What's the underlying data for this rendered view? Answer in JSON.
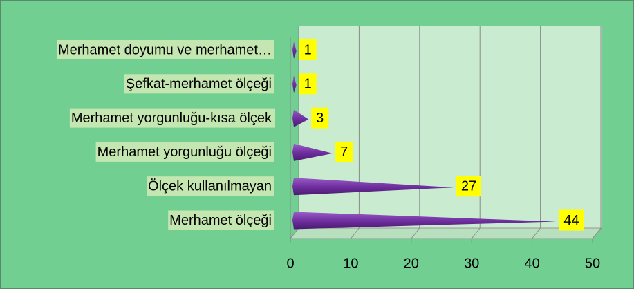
{
  "chart_data": {
    "type": "bar",
    "orientation": "horizontal",
    "categories": [
      "Merhamet doyumu ve merhamet…",
      "Şefkat-merhamet ölçeği",
      "Merhamet yorgunluğu-kısa ölçek",
      "Merhamet yorgunluğu ölçeği",
      "Ölçek kullanılmayan",
      "Merhamet ölçeği"
    ],
    "values": [
      1,
      1,
      3,
      7,
      27,
      44
    ],
    "color": "#7030a0",
    "xlim": [
      0,
      50
    ],
    "xticks": [
      0,
      10,
      20,
      30,
      40,
      50
    ],
    "grid": true
  }
}
